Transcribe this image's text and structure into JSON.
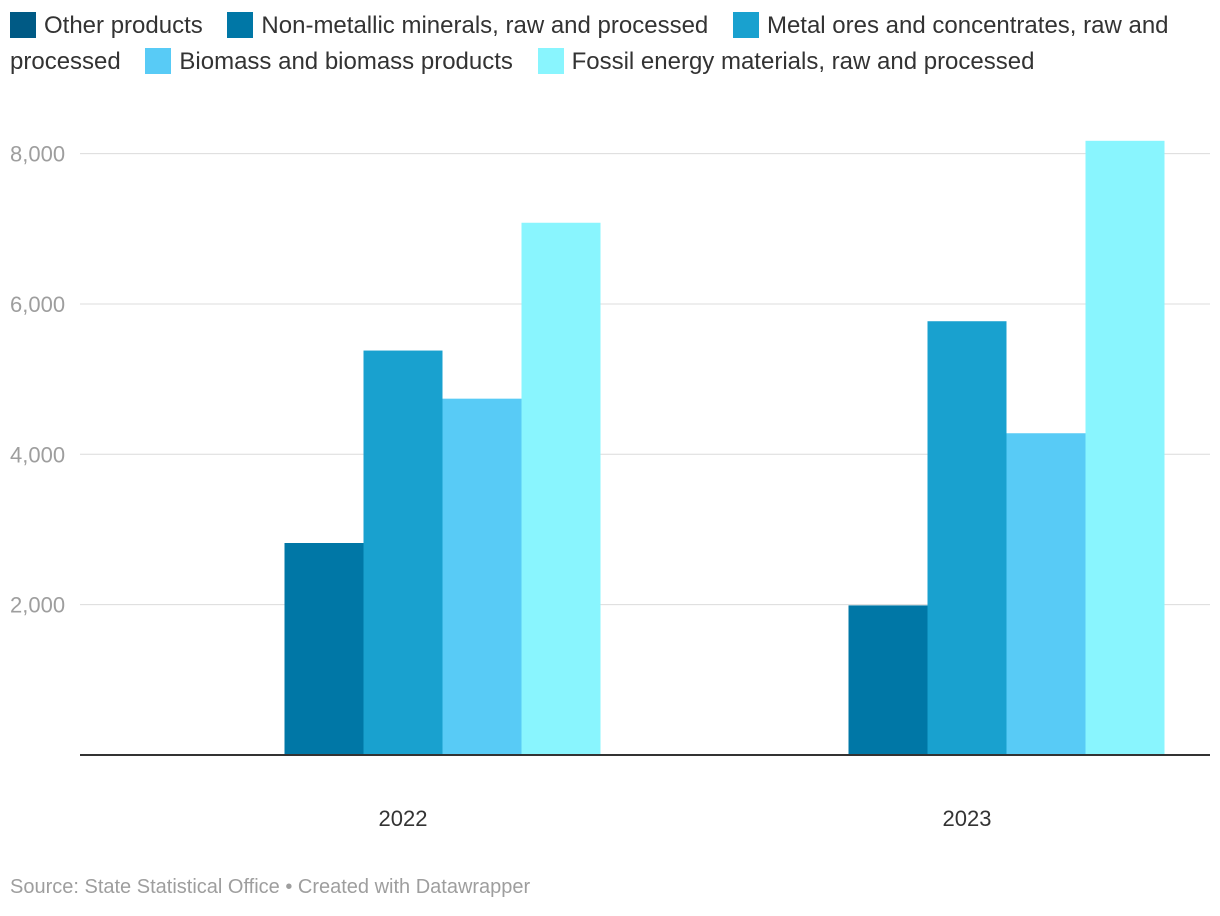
{
  "chart_data": {
    "type": "bar",
    "categories": [
      "2022",
      "2023"
    ],
    "series": [
      {
        "name": "Other products",
        "color": "#005a85",
        "values": [
          0,
          0
        ]
      },
      {
        "name": "Non-metallic minerals, raw and processed",
        "color": "#0077a6",
        "values": [
          2820,
          1990
        ]
      },
      {
        "name": "Metal ores and concentrates, raw and processed",
        "color": "#19a1cf",
        "values": [
          5380,
          5770
        ]
      },
      {
        "name": "Biomass and biomass products",
        "color": "#58cbf6",
        "values": [
          4740,
          4280
        ]
      },
      {
        "name": "Fossil energy materials, raw and processed",
        "color": "#89f5fe",
        "values": [
          7080,
          8170
        ]
      }
    ],
    "yticks": [
      {
        "value": 2000,
        "label": "2,000"
      },
      {
        "value": 4000,
        "label": "4,000"
      },
      {
        "value": 6000,
        "label": "6,000"
      },
      {
        "value": 8000,
        "label": "8,000"
      }
    ],
    "ylim": [
      0,
      8500
    ],
    "legend_position": "top-left",
    "grid": true
  },
  "footer": {
    "source": "Source: State Statistical Office • Created with Datawrapper"
  }
}
